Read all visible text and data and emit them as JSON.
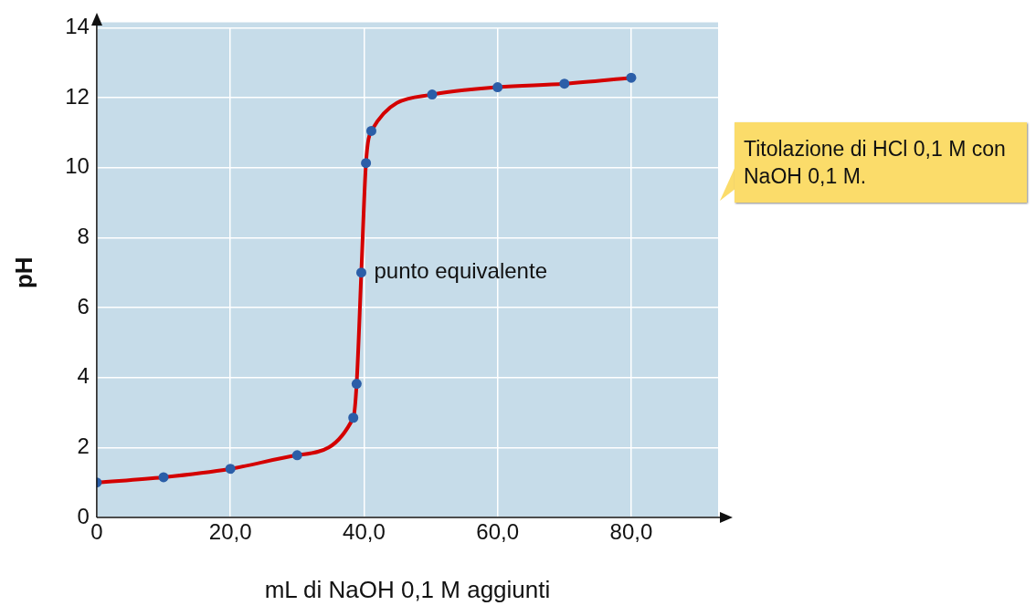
{
  "chart_data": {
    "type": "line",
    "xlabel": "mL di NaOH 0,1 M aggiunti",
    "ylabel": "pH",
    "x": [
      0,
      10,
      20,
      30,
      38.4,
      38.9,
      39.6,
      40.3,
      41.1,
      50.2,
      60,
      70,
      80
    ],
    "series": [
      {
        "color": "#d40000",
        "values": [
          1.0,
          1.15,
          1.39,
          1.78,
          2.85,
          3.82,
          7.0,
          10.13,
          11.05,
          12.09,
          12.3,
          12.4,
          12.57
        ]
      }
    ],
    "xlim": [
      0,
      93
    ],
    "ylim": [
      0,
      14
    ],
    "xticks": [
      {
        "value": 0,
        "label": "0"
      },
      {
        "value": 20,
        "label": "20,0"
      },
      {
        "value": 40,
        "label": "40,0"
      },
      {
        "value": 60,
        "label": "60,0"
      },
      {
        "value": 80,
        "label": "80,0"
      }
    ],
    "yticks": [
      0,
      2,
      4,
      6,
      8,
      10,
      12,
      14
    ],
    "grid": true,
    "marker": "circle",
    "line_style": "solid",
    "legend": false,
    "annotations": [
      {
        "text": "punto equivalente",
        "x": 39.6,
        "y": 7
      },
      "Titolazione di HCl 0,1 M con NaOH 0,1 M."
    ]
  }
}
